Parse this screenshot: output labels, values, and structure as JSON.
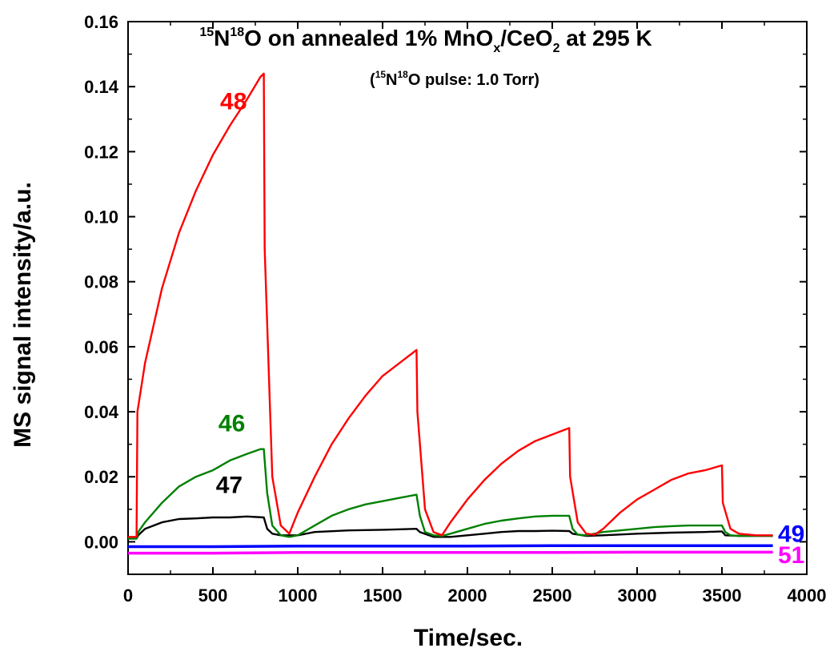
{
  "chart_data": {
    "type": "line",
    "title": {
      "pre_sup": "15",
      "a": "N",
      "a_sup": "18",
      "b": "O on annealed 1% MnO",
      "b_sub": "x",
      "c": "/CeO",
      "c_sub": "2",
      "d": " at 295 K"
    },
    "subtitle": {
      "open": "(",
      "pre_sup": "15",
      "a": "N",
      "a_sup": "18",
      "b": "O pulse: 1.0 Torr)"
    },
    "xlabel": "Time/sec.",
    "ylabel": "MS signal intensity/a.u.",
    "xlim": [
      0,
      4000
    ],
    "ylim": [
      -0.01,
      0.16
    ],
    "x_ticks": [
      "0",
      "500",
      "1000",
      "1500",
      "2000",
      "2500",
      "3000",
      "3500",
      "4000"
    ],
    "y_ticks": [
      "0.00",
      "0.02",
      "0.04",
      "0.06",
      "0.08",
      "0.10",
      "0.12",
      "0.14",
      "0.16"
    ],
    "grid": false,
    "legend": "none (series labelled inline)",
    "series": [
      {
        "name": "48",
        "color": "#ff0000",
        "x": [
          0,
          50,
          55,
          100,
          200,
          300,
          400,
          500,
          600,
          700,
          780,
          800,
          805,
          850,
          900,
          950,
          1000,
          1100,
          1200,
          1300,
          1400,
          1500,
          1600,
          1700,
          1705,
          1750,
          1800,
          1850,
          1900,
          2000,
          2100,
          2200,
          2300,
          2400,
          2500,
          2600,
          2605,
          2650,
          2700,
          2750,
          2800,
          2900,
          3000,
          3100,
          3200,
          3300,
          3400,
          3500,
          3505,
          3550,
          3600,
          3700,
          3800
        ],
        "y": [
          0.0015,
          0.0015,
          0.04,
          0.055,
          0.078,
          0.095,
          0.108,
          0.119,
          0.128,
          0.136,
          0.143,
          0.144,
          0.09,
          0.02,
          0.005,
          0.0025,
          0.009,
          0.02,
          0.03,
          0.038,
          0.045,
          0.051,
          0.055,
          0.059,
          0.04,
          0.01,
          0.003,
          0.002,
          0.006,
          0.013,
          0.019,
          0.024,
          0.028,
          0.031,
          0.033,
          0.035,
          0.02,
          0.006,
          0.0025,
          0.0022,
          0.004,
          0.009,
          0.013,
          0.016,
          0.019,
          0.021,
          0.022,
          0.0235,
          0.012,
          0.004,
          0.0025,
          0.002,
          0.002
        ]
      },
      {
        "name": "46",
        "color": "#008000",
        "x": [
          0,
          50,
          60,
          100,
          200,
          300,
          400,
          500,
          600,
          700,
          780,
          800,
          820,
          850,
          900,
          950,
          1000,
          1100,
          1200,
          1300,
          1400,
          1500,
          1600,
          1700,
          1720,
          1750,
          1800,
          1850,
          1900,
          2000,
          2100,
          2200,
          2300,
          2400,
          2500,
          2600,
          2620,
          2650,
          2700,
          2800,
          2900,
          3000,
          3100,
          3200,
          3300,
          3400,
          3500,
          3520,
          3550,
          3600,
          3700,
          3800
        ],
        "y": [
          0.001,
          0.001,
          0.003,
          0.006,
          0.012,
          0.017,
          0.02,
          0.022,
          0.025,
          0.027,
          0.0285,
          0.0285,
          0.015,
          0.005,
          0.002,
          0.0015,
          0.002,
          0.005,
          0.008,
          0.01,
          0.0115,
          0.0125,
          0.0135,
          0.0145,
          0.008,
          0.003,
          0.002,
          0.0018,
          0.0025,
          0.004,
          0.0055,
          0.0065,
          0.0072,
          0.0078,
          0.008,
          0.008,
          0.004,
          0.0022,
          0.002,
          0.003,
          0.0035,
          0.004,
          0.0045,
          0.0048,
          0.005,
          0.005,
          0.005,
          0.003,
          0.002,
          0.0018,
          0.0018,
          0.0018
        ]
      },
      {
        "name": "47",
        "color": "#000000",
        "x": [
          0,
          50,
          60,
          100,
          200,
          300,
          400,
          500,
          600,
          700,
          800,
          820,
          850,
          900,
          1000,
          1100,
          1300,
          1500,
          1700,
          1720,
          1800,
          1900,
          2000,
          2100,
          2200,
          2300,
          2400,
          2500,
          2600,
          2620,
          2700,
          2800,
          3000,
          3200,
          3400,
          3500,
          3520,
          3600,
          3800
        ],
        "y": [
          0.001,
          0.001,
          0.002,
          0.004,
          0.006,
          0.007,
          0.0072,
          0.0075,
          0.0075,
          0.0078,
          0.0075,
          0.004,
          0.0025,
          0.002,
          0.002,
          0.003,
          0.0035,
          0.0037,
          0.004,
          0.003,
          0.0015,
          0.0015,
          0.002,
          0.0025,
          0.003,
          0.0033,
          0.0033,
          0.0034,
          0.0033,
          0.0025,
          0.0018,
          0.002,
          0.0025,
          0.0028,
          0.003,
          0.0032,
          0.002,
          0.0018,
          0.0018
        ]
      },
      {
        "name": "49",
        "color": "#0000ff",
        "x": [
          0,
          500,
          1000,
          1500,
          2000,
          2500,
          3000,
          3500,
          3800
        ],
        "y": [
          -0.0015,
          -0.0015,
          -0.0013,
          -0.0013,
          -0.0013,
          -0.0012,
          -0.0012,
          -0.0012,
          -0.0012
        ]
      },
      {
        "name": "51",
        "color": "#ff00ff",
        "x": [
          0,
          500,
          1000,
          1500,
          2000,
          2500,
          3000,
          3500,
          3800
        ],
        "y": [
          -0.0035,
          -0.0035,
          -0.0033,
          -0.0033,
          -0.0033,
          -0.0033,
          -0.0032,
          -0.0032,
          -0.0032
        ]
      }
    ]
  }
}
